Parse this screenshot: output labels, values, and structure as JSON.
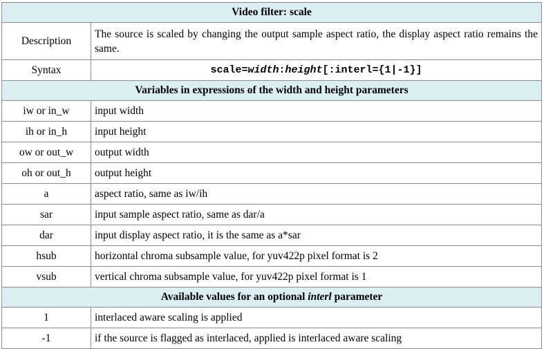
{
  "title": "Video filter: scale",
  "description": {
    "label": "Description",
    "text": "The source is scaled by changing the output sample aspect ratio, the display aspect ratio remains the same."
  },
  "syntax": {
    "label": "Syntax",
    "prefix": "scale=",
    "width": "width",
    "colon": ":",
    "height": "height",
    "suffix": "[:interl={1|-1}]"
  },
  "variables_heading": "Variables in expressions of the width and height parameters",
  "variables": [
    {
      "name": "iw or in_w",
      "desc": "input width"
    },
    {
      "name": "ih or in_h",
      "desc": "input height"
    },
    {
      "name": "ow or out_w",
      "desc": "output width"
    },
    {
      "name": "oh or out_h",
      "desc": "output height"
    },
    {
      "name": "a",
      "desc": "aspect ratio, same as iw/ih"
    },
    {
      "name": "sar",
      "desc": "input sample aspect ratio, same as dar/a"
    },
    {
      "name": "dar",
      "desc": "input display aspect ratio, it is the same as a*sar"
    },
    {
      "name": "hsub",
      "desc": "horizontal chroma subsample value, for yuv422p pixel format is 2"
    },
    {
      "name": "vsub",
      "desc": "vertical chroma subsample value, for yuv422p pixel format is 1"
    }
  ],
  "values_heading": {
    "before": "Available values for an optional ",
    "param": "interl",
    "after": " parameter"
  },
  "values": [
    {
      "name": "1",
      "desc": "interlaced aware scaling is applied"
    },
    {
      "name": "-1",
      "desc": "if the source is flagged as interlaced, applied is interlaced aware scaling"
    }
  ],
  "colors": {
    "header_bg": "#dbeef4",
    "border": "#8a8a8a"
  }
}
